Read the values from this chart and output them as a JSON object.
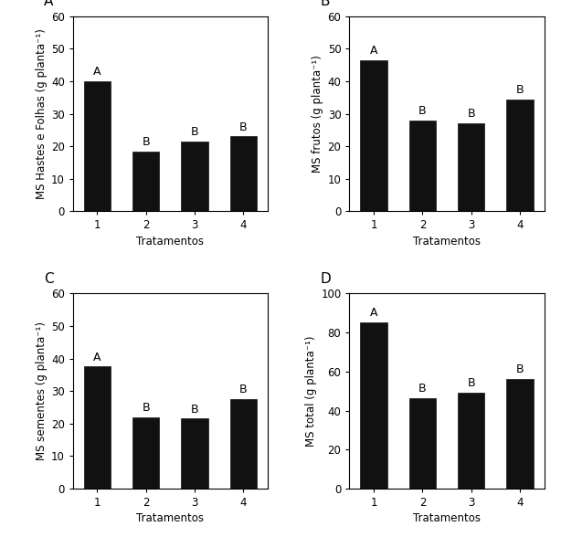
{
  "subplots": [
    {
      "label": "A",
      "values": [
        40.0,
        18.5,
        21.5,
        23.0
      ],
      "letters": [
        "A",
        "B",
        "B",
        "B"
      ],
      "ylabel": "MS Hastes e Folhas (g planta⁻¹)",
      "ylim": [
        0,
        60
      ],
      "yticks": [
        0,
        10,
        20,
        30,
        40,
        50,
        60
      ]
    },
    {
      "label": "B",
      "values": [
        46.5,
        28.0,
        27.0,
        34.5
      ],
      "letters": [
        "A",
        "B",
        "B",
        "B"
      ],
      "ylabel": "MS frutos (g planta⁻¹)",
      "ylim": [
        0,
        60
      ],
      "yticks": [
        0,
        10,
        20,
        30,
        40,
        50,
        60
      ]
    },
    {
      "label": "C",
      "values": [
        37.5,
        22.0,
        21.5,
        27.5
      ],
      "letters": [
        "A",
        "B",
        "B",
        "B"
      ],
      "ylabel": "MS sementes (g planta⁻¹)",
      "ylim": [
        0,
        60
      ],
      "yticks": [
        0,
        10,
        20,
        30,
        40,
        50,
        60
      ]
    },
    {
      "label": "D",
      "values": [
        85.0,
        46.5,
        49.0,
        56.0
      ],
      "letters": [
        "A",
        "B",
        "B",
        "B"
      ],
      "ylabel": "MS total (g planta⁻¹)",
      "ylim": [
        0,
        100
      ],
      "yticks": [
        0,
        20,
        40,
        60,
        80,
        100
      ]
    }
  ],
  "xlabel": "Tratamentos",
  "xtick_labels": [
    "1",
    "2",
    "3",
    "4"
  ],
  "bar_color": "#111111",
  "bar_width": 0.55,
  "bar_edge_color": "#111111",
  "letter_fontsize": 9,
  "axis_label_fontsize": 8.5,
  "tick_fontsize": 8.5,
  "subplot_label_fontsize": 11,
  "background_color": "#ffffff"
}
